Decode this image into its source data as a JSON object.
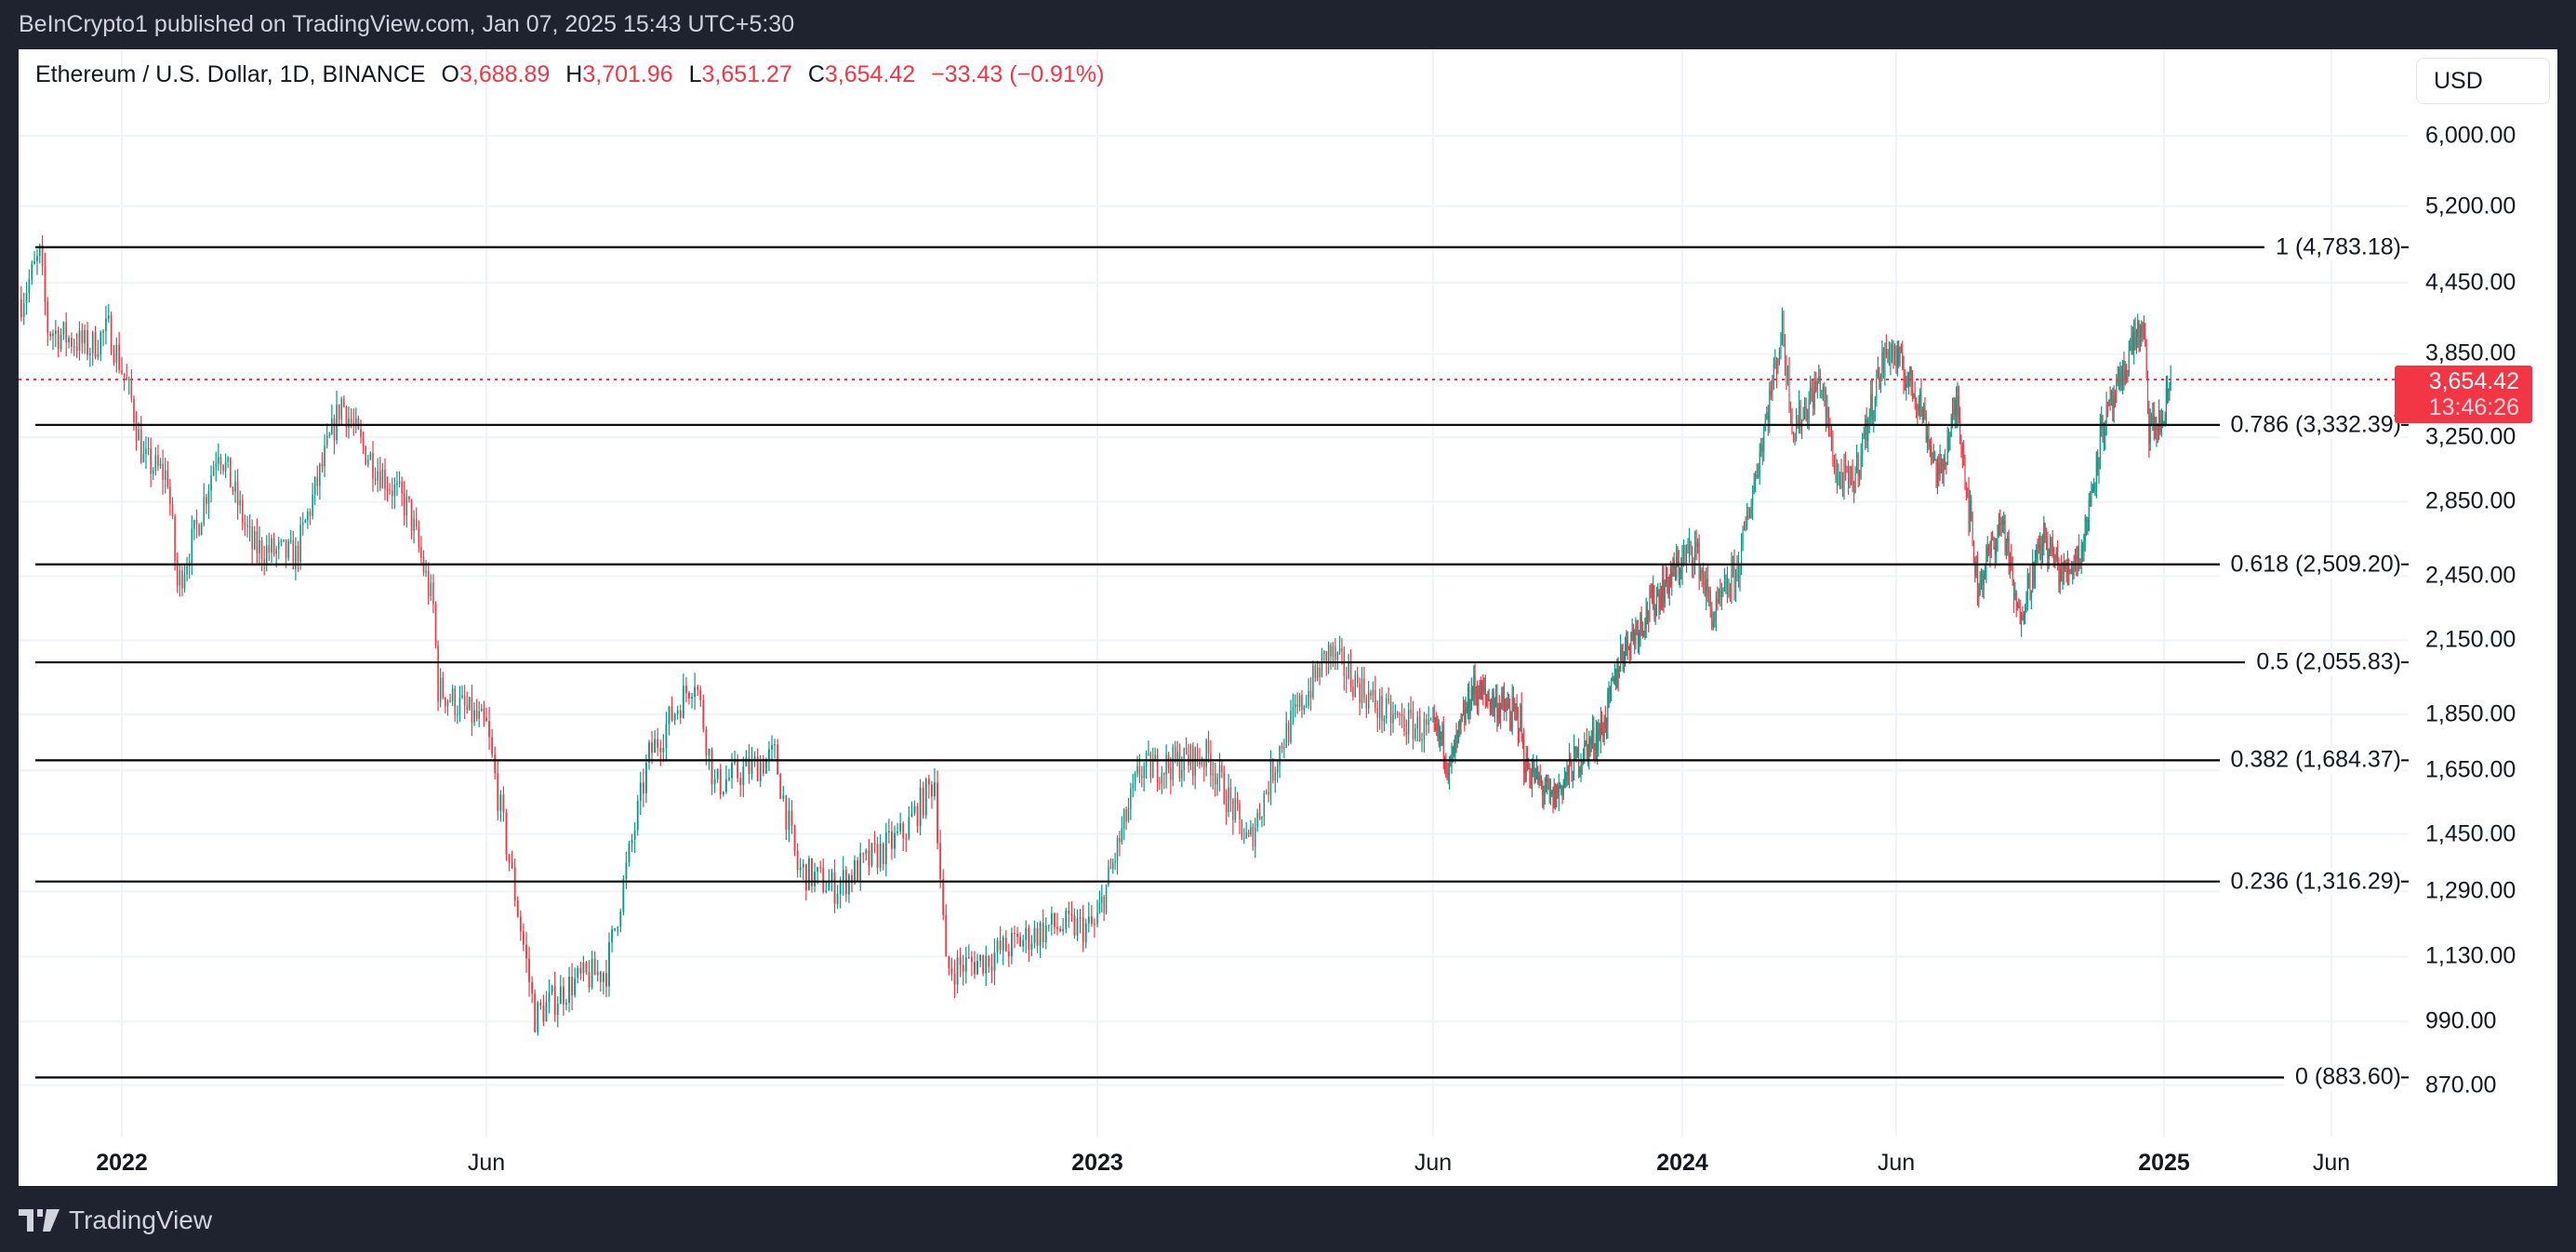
{
  "header": {
    "published": "BeInCrypto1 published on TradingView.com, Jan 07, 2025 15:43 UTC+5:30"
  },
  "legend": {
    "symbol": "Ethereum / U.S. Dollar, 1D, BINANCE",
    "o_label": "O",
    "open": "3,688.89",
    "h_label": "H",
    "high": "3,701.96",
    "l_label": "L",
    "low": "3,651.27",
    "c_label": "C",
    "close": "3,654.42",
    "change": "−33.43 (−0.91%)"
  },
  "currency_button": "USD",
  "last_price": {
    "value": "3,654.42",
    "countdown": "13:46:26"
  },
  "footer": {
    "brand": "TradingView"
  },
  "colors": {
    "up": "#089981",
    "down": "#f23645",
    "fib_line": "#000000",
    "last_price": "#f23645"
  },
  "chart_data": {
    "type": "candlestick",
    "title": "Ethereum / U.S. Dollar, 1D, BINANCE",
    "y_scale": "log",
    "ylim": [
      800,
      6500
    ],
    "grid": true,
    "y_ticks": [
      "6,000.00",
      "5,200.00",
      "4,450.00",
      "3,850.00",
      "3,250.00",
      "2,850.00",
      "2,450.00",
      "2,150.00",
      "1,850.00",
      "1,650.00",
      "1,450.00",
      "1,290.00",
      "1,130.00",
      "990.00",
      "870.00"
    ],
    "x_ticks": [
      {
        "label": "2022",
        "date": "2022-01-01",
        "year": true
      },
      {
        "label": "Jun",
        "date": "2022-06-01"
      },
      {
        "label": "2023",
        "date": "2023-01-01",
        "year": true
      },
      {
        "label": "Jun",
        "date": "2023-06-01"
      },
      {
        "label": "2024",
        "date": "2024-01-01",
        "year": true
      },
      {
        "label": "Jun",
        "date": "2024-06-01"
      },
      {
        "label": "2025",
        "date": "2025-01-01",
        "year": true
      },
      {
        "label": "Jun",
        "date": "2025-06-01"
      }
    ],
    "fib_levels": [
      {
        "label": "1 (4,783.18)",
        "value": 4783.18
      },
      {
        "label": "0.786 (3,332.39)",
        "value": 3332.39
      },
      {
        "label": "0.618 (2,509.20)",
        "value": 2509.2
      },
      {
        "label": "0.5 (2,055.83)",
        "value": 2055.83
      },
      {
        "label": "0.382 (1,684.37)",
        "value": 1684.37
      },
      {
        "label": "0.236 (1,316.29)",
        "value": 1316.29
      },
      {
        "label": "0 (883.60)",
        "value": 883.6
      }
    ],
    "last_close": 3654.42,
    "approx_closes": [
      [
        "2021-11-24",
        4300
      ],
      [
        "2021-12-01",
        4700
      ],
      [
        "2021-12-04",
        4050
      ],
      [
        "2021-12-20",
        3900
      ],
      [
        "2021-12-27",
        4050
      ],
      [
        "2022-01-05",
        3500
      ],
      [
        "2022-01-10",
        3100
      ],
      [
        "2022-01-20",
        3000
      ],
      [
        "2022-01-24",
        2400
      ],
      [
        "2022-02-01",
        2700
      ],
      [
        "2022-02-10",
        3200
      ],
      [
        "2022-02-24",
        2600
      ],
      [
        "2022-03-14",
        2550
      ],
      [
        "2022-04-02",
        3500
      ],
      [
        "2022-04-10",
        3200
      ],
      [
        "2022-04-30",
        2800
      ],
      [
        "2022-05-10",
        2300
      ],
      [
        "2022-05-12",
        1950
      ],
      [
        "2022-06-01",
        1800
      ],
      [
        "2022-06-13",
        1200
      ],
      [
        "2022-06-18",
        1000
      ],
      [
        "2022-07-01",
        1070
      ],
      [
        "2022-07-13",
        1100
      ],
      [
        "2022-07-28",
        1700
      ],
      [
        "2022-08-13",
        2000
      ],
      [
        "2022-08-20",
        1600
      ],
      [
        "2022-09-10",
        1700
      ],
      [
        "2022-09-18",
        1350
      ],
      [
        "2022-10-01",
        1300
      ],
      [
        "2022-10-25",
        1450
      ],
      [
        "2022-11-05",
        1620
      ],
      [
        "2022-11-09",
        1100
      ],
      [
        "2022-11-21",
        1120
      ],
      [
        "2022-12-15",
        1200
      ],
      [
        "2022-12-31",
        1200
      ],
      [
        "2023-01-20",
        1650
      ],
      [
        "2023-02-20",
        1700
      ],
      [
        "2023-03-10",
        1420
      ],
      [
        "2023-03-25",
        1750
      ],
      [
        "2023-04-15",
        2100
      ],
      [
        "2023-05-10",
        1850
      ],
      [
        "2023-06-10",
        1750
      ],
      [
        "2023-06-15",
        1650
      ],
      [
        "2023-07-05",
        1950
      ],
      [
        "2023-08-15",
        1830
      ],
      [
        "2023-08-18",
        1680
      ],
      [
        "2023-09-11",
        1550
      ],
      [
        "2023-10-01",
        1680
      ],
      [
        "2023-10-25",
        1800
      ],
      [
        "2023-11-10",
        2100
      ],
      [
        "2023-12-10",
        2350
      ],
      [
        "2024-01-10",
        2600
      ],
      [
        "2024-01-23",
        2250
      ],
      [
        "2024-02-10",
        2500
      ],
      [
        "2024-02-28",
        3300
      ],
      [
        "2024-03-12",
        4050
      ],
      [
        "2024-03-20",
        3300
      ],
      [
        "2024-04-08",
        3650
      ],
      [
        "2024-04-20",
        3000
      ],
      [
        "2024-05-01",
        2950
      ],
      [
        "2024-05-20",
        3700
      ],
      [
        "2024-05-27",
        3900
      ],
      [
        "2024-06-20",
        3500
      ],
      [
        "2024-07-05",
        2980
      ],
      [
        "2024-07-20",
        3500
      ],
      [
        "2024-08-05",
        2400
      ],
      [
        "2024-08-25",
        2750
      ],
      [
        "2024-09-06",
        2250
      ],
      [
        "2024-09-27",
        2650
      ],
      [
        "2024-10-12",
        2450
      ],
      [
        "2024-10-28",
        2600
      ],
      [
        "2024-11-12",
        3300
      ],
      [
        "2024-11-27",
        3600
      ],
      [
        "2024-12-08",
        4000
      ],
      [
        "2024-12-16",
        4000
      ],
      [
        "2024-12-20",
        3300
      ],
      [
        "2024-12-31",
        3350
      ],
      [
        "2025-01-07",
        3654.42
      ]
    ]
  }
}
